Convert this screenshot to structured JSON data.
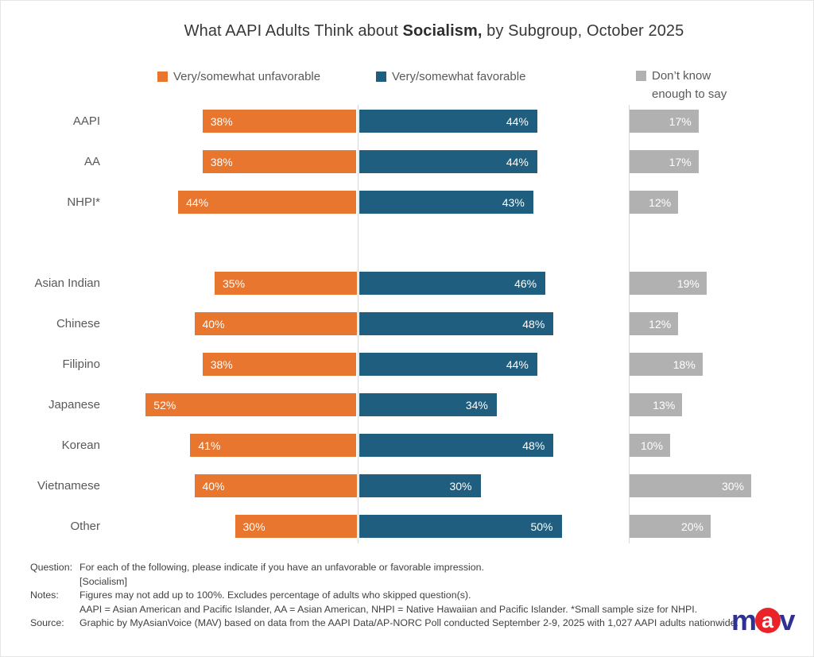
{
  "title": {
    "prefix": "What AAPI Adults Think about ",
    "bold": "Socialism,",
    "suffix": " by Subgroup, October 2025"
  },
  "legend": [
    {
      "label": "Very/somewhat unfavorable",
      "color": "#e8762f"
    },
    {
      "label": "Very/somewhat favorable",
      "color": "#1f5e7e"
    },
    {
      "label_line1": "Don’t know",
      "label_line2": "enough to say",
      "color": "#b1b1b1"
    }
  ],
  "chart_data": {
    "type": "bar",
    "orientation": "horizontal",
    "layout": "diverging center axis for unfavorable/favorable, separate right-hand panel for don't-know",
    "title": "What AAPI Adults Think about Socialism, by Subgroup, October 2025",
    "categories": [
      "AAPI",
      "AA",
      "NHPI*",
      "Asian Indian",
      "Chinese",
      "Filipino",
      "Japanese",
      "Korean",
      "Vietnamese",
      "Other"
    ],
    "gap_after_index": 2,
    "series": [
      {
        "name": "Very/somewhat unfavorable",
        "color": "#e8762f",
        "direction": "left",
        "values": [
          38,
          38,
          44,
          35,
          40,
          38,
          52,
          41,
          40,
          30
        ]
      },
      {
        "name": "Very/somewhat favorable",
        "color": "#1f5e7e",
        "direction": "right",
        "values": [
          44,
          44,
          43,
          46,
          48,
          44,
          34,
          48,
          30,
          50
        ]
      },
      {
        "name": "Don't know enough to say",
        "color": "#b1b1b1",
        "direction": "right",
        "values": [
          17,
          17,
          12,
          19,
          12,
          18,
          13,
          10,
          30,
          20
        ]
      }
    ],
    "value_suffix": "%",
    "value_labels": "inside bars, white",
    "axis": {
      "ticks": "none",
      "grid": false,
      "unit": "percent",
      "max_value_shown": 52
    },
    "legend_position": "top"
  },
  "footer": {
    "rows": [
      {
        "label": "Question:",
        "lines": [
          "For each of the following, please indicate if you have an unfavorable or favorable impression.",
          "[Socialism]"
        ]
      },
      {
        "label": "Notes:",
        "lines": [
          "Figures may not add up to 100%. Excludes percentage of adults who skipped question(s).",
          "AAPI = Asian American and Pacific Islander, AA = Asian American, NHPI = Native Hawaiian and Pacific Islander. *Small sample size for NHPI."
        ]
      },
      {
        "label": "Source:",
        "lines": [
          "Graphic by MyAsianVoice (MAV) based on data from the AAPI Data/AP-NORC Poll conducted September 2-9, 2025 with 1,027 AAPI adults nationwide."
        ]
      }
    ]
  },
  "logo": {
    "m": "m",
    "a": "a",
    "v": "v",
    "navy": "#2e3192",
    "red": "#ea2328"
  }
}
